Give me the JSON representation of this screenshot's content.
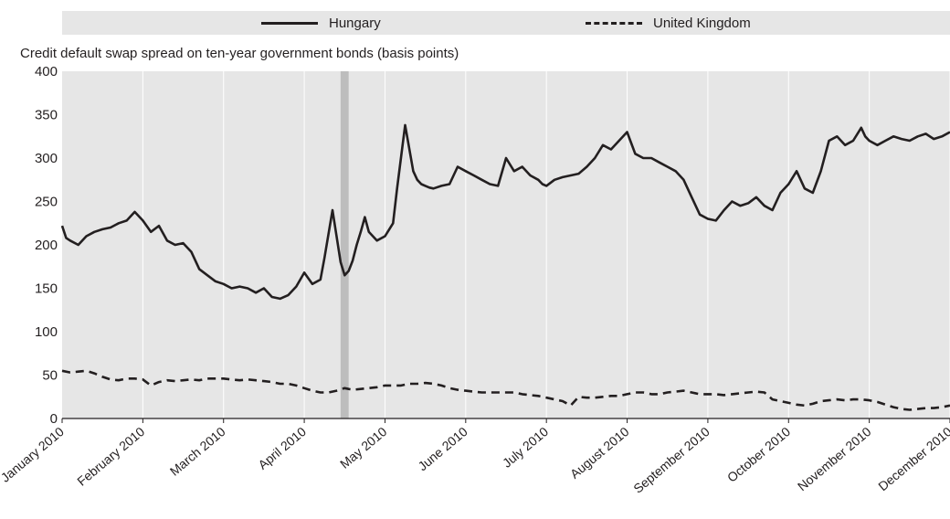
{
  "chart_data": {
    "type": "line",
    "title": "",
    "ylabel": "Credit default swap spread on ten-year government bonds (basis points)",
    "xlabel": "",
    "ylim": [
      0,
      400
    ],
    "yticks": [
      0,
      50,
      100,
      150,
      200,
      250,
      300,
      350,
      400
    ],
    "xlim": [
      0,
      11
    ],
    "x_tick_labels": [
      "January 2010",
      "February 2010",
      "March 2010",
      "April 2010",
      "May 2010",
      "June 2010",
      "July 2010",
      "August 2010",
      "September 2010",
      "October 2010",
      "November 2010",
      "December 2010"
    ],
    "grid": "vertical",
    "legend_position": "top",
    "highlight_band": {
      "x": [
        3.45,
        3.55
      ],
      "color": "#bdbdbd"
    },
    "series": [
      {
        "name": "Hungary",
        "style": "solid",
        "color": "#231f20",
        "x": [
          0,
          0.05,
          0.1,
          0.2,
          0.3,
          0.4,
          0.5,
          0.6,
          0.7,
          0.8,
          0.9,
          1.0,
          1.1,
          1.2,
          1.3,
          1.4,
          1.5,
          1.6,
          1.7,
          1.8,
          1.9,
          2.0,
          2.1,
          2.2,
          2.3,
          2.4,
          2.5,
          2.6,
          2.7,
          2.8,
          2.9,
          3.0,
          3.1,
          3.2,
          3.25,
          3.35,
          3.45,
          3.5,
          3.55,
          3.6,
          3.65,
          3.7,
          3.75,
          3.8,
          3.9,
          4.0,
          4.1,
          4.15,
          4.25,
          4.35,
          4.4,
          4.45,
          4.5,
          4.55,
          4.6,
          4.7,
          4.8,
          4.9,
          5.0,
          5.1,
          5.2,
          5.3,
          5.4,
          5.5,
          5.6,
          5.7,
          5.8,
          5.9,
          5.95,
          6.0,
          6.1,
          6.2,
          6.3,
          6.4,
          6.5,
          6.6,
          6.7,
          6.8,
          6.9,
          7.0,
          7.1,
          7.2,
          7.3,
          7.4,
          7.5,
          7.6,
          7.7,
          7.8,
          7.9,
          8.0,
          8.1,
          8.2,
          8.3,
          8.4,
          8.5,
          8.6,
          8.7,
          8.8,
          8.9,
          9.0,
          9.1,
          9.2,
          9.3,
          9.4,
          9.5,
          9.6,
          9.7,
          9.8,
          9.9,
          9.95,
          10.0,
          10.1,
          10.2,
          10.3,
          10.4,
          10.5,
          10.6,
          10.7,
          10.8,
          10.9,
          11.0
        ],
        "values": [
          222,
          208,
          205,
          200,
          210,
          215,
          218,
          220,
          225,
          228,
          238,
          228,
          215,
          222,
          205,
          200,
          202,
          192,
          172,
          165,
          158,
          155,
          150,
          152,
          150,
          145,
          150,
          140,
          138,
          142,
          152,
          168,
          155,
          160,
          185,
          240,
          180,
          165,
          170,
          182,
          200,
          215,
          232,
          215,
          205,
          210,
          225,
          265,
          338,
          285,
          275,
          270,
          268,
          266,
          265,
          268,
          270,
          290,
          285,
          280,
          275,
          270,
          268,
          300,
          285,
          290,
          280,
          275,
          270,
          268,
          275,
          278,
          280,
          282,
          290,
          300,
          315,
          310,
          320,
          330,
          305,
          300,
          300,
          295,
          290,
          285,
          275,
          255,
          235,
          230,
          228,
          240,
          250,
          245,
          248,
          255,
          245,
          240,
          260,
          270,
          285,
          265,
          260,
          285,
          320,
          325,
          315,
          320,
          335,
          325,
          320,
          315,
          320,
          325,
          322,
          320,
          325,
          328,
          322,
          325,
          330
        ]
      },
      {
        "name": "United Kingdom",
        "style": "dashed",
        "color": "#231f20",
        "x": [
          0,
          0.1,
          0.2,
          0.3,
          0.4,
          0.5,
          0.6,
          0.7,
          0.8,
          0.9,
          1.0,
          1.1,
          1.2,
          1.3,
          1.4,
          1.5,
          1.6,
          1.7,
          1.8,
          1.9,
          2.0,
          2.1,
          2.2,
          2.3,
          2.4,
          2.5,
          2.6,
          2.7,
          2.8,
          2.9,
          3.0,
          3.1,
          3.2,
          3.3,
          3.4,
          3.5,
          3.6,
          3.7,
          3.8,
          3.9,
          4.0,
          4.1,
          4.2,
          4.3,
          4.4,
          4.5,
          4.6,
          4.7,
          4.8,
          4.9,
          5.0,
          5.1,
          5.2,
          5.3,
          5.4,
          5.5,
          5.6,
          5.7,
          5.8,
          5.9,
          6.0,
          6.1,
          6.2,
          6.3,
          6.4,
          6.5,
          6.6,
          6.7,
          6.8,
          6.9,
          7.0,
          7.1,
          7.2,
          7.3,
          7.4,
          7.5,
          7.6,
          7.7,
          7.8,
          7.9,
          8.0,
          8.1,
          8.2,
          8.3,
          8.4,
          8.5,
          8.6,
          8.7,
          8.8,
          8.9,
          9.0,
          9.1,
          9.2,
          9.3,
          9.4,
          9.5,
          9.6,
          9.7,
          9.8,
          9.9,
          10.0,
          10.1,
          10.2,
          10.3,
          10.4,
          10.5,
          10.6,
          10.7,
          10.8,
          10.9,
          11.0
        ],
        "values": [
          55,
          53,
          54,
          55,
          52,
          48,
          45,
          44,
          46,
          46,
          45,
          38,
          42,
          44,
          43,
          44,
          45,
          44,
          46,
          46,
          46,
          45,
          44,
          45,
          44,
          43,
          42,
          40,
          40,
          38,
          35,
          32,
          30,
          30,
          32,
          35,
          33,
          34,
          35,
          36,
          38,
          38,
          38,
          40,
          40,
          41,
          40,
          38,
          35,
          33,
          32,
          31,
          30,
          30,
          30,
          30,
          30,
          28,
          27,
          26,
          24,
          22,
          20,
          15,
          25,
          24,
          24,
          25,
          26,
          26,
          28,
          30,
          30,
          28,
          28,
          30,
          31,
          32,
          30,
          28,
          28,
          28,
          27,
          28,
          29,
          30,
          31,
          30,
          22,
          20,
          18,
          16,
          15,
          17,
          20,
          21,
          22,
          21,
          22,
          22,
          21,
          19,
          16,
          13,
          11,
          10,
          11,
          12,
          12,
          13,
          15
        ]
      }
    ]
  }
}
